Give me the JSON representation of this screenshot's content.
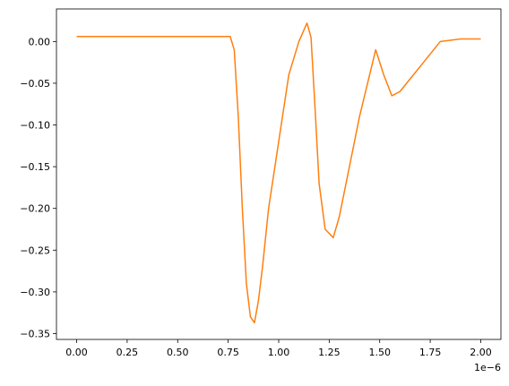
{
  "chart_data": {
    "type": "line",
    "title": "",
    "xlabel": "",
    "ylabel": "",
    "x_offset_text": "1e−6",
    "xlim": [
      -1e-07,
      2.1e-06
    ],
    "ylim": [
      -0.357,
      0.039
    ],
    "grid": false,
    "legend": "none",
    "x_ticks": [
      0.0,
      2.5e-07,
      5e-07,
      7.5e-07,
      1e-06,
      1.25e-06,
      1.5e-06,
      1.75e-06,
      2e-06
    ],
    "x_tick_labels": [
      "0.00",
      "0.25",
      "0.50",
      "0.75",
      "1.00",
      "1.25",
      "1.50",
      "1.75",
      "2.00"
    ],
    "y_ticks": [
      0.0,
      -0.05,
      -0.1,
      -0.15,
      -0.2,
      -0.25,
      -0.3,
      -0.35
    ],
    "y_tick_labels": [
      "0.00",
      "−0.05",
      "−0.10",
      "−0.15",
      "−0.20",
      "−0.25",
      "−0.30",
      "−0.35"
    ],
    "series": [
      {
        "color": "#ff7f0e",
        "x": [
          0.0,
          1e-07,
          2e-07,
          3e-07,
          4e-07,
          5e-07,
          6e-07,
          7e-07,
          7.6e-07,
          7.8e-07,
          8e-07,
          8.2e-07,
          8.4e-07,
          8.6e-07,
          8.8e-07,
          9e-07,
          9.2e-07,
          9.5e-07,
          1e-06,
          1.05e-06,
          1.1e-06,
          1.14e-06,
          1.16e-06,
          1.18e-06,
          1.2e-06,
          1.23e-06,
          1.27e-06,
          1.3e-06,
          1.35e-06,
          1.4e-06,
          1.45e-06,
          1.48e-06,
          1.52e-06,
          1.56e-06,
          1.6e-06,
          1.65e-06,
          1.7e-06,
          1.75e-06,
          1.8e-06,
          1.9e-06,
          2e-06
        ],
        "y": [
          0.006,
          0.006,
          0.006,
          0.006,
          0.006,
          0.006,
          0.006,
          0.006,
          0.006,
          -0.01,
          -0.09,
          -0.2,
          -0.29,
          -0.33,
          -0.337,
          -0.31,
          -0.27,
          -0.2,
          -0.12,
          -0.04,
          0.0,
          0.022,
          0.005,
          -0.08,
          -0.17,
          -0.225,
          -0.235,
          -0.21,
          -0.15,
          -0.09,
          -0.04,
          -0.01,
          -0.04,
          -0.065,
          -0.06,
          -0.045,
          -0.03,
          -0.015,
          0.0,
          0.003,
          0.003
        ]
      }
    ]
  }
}
